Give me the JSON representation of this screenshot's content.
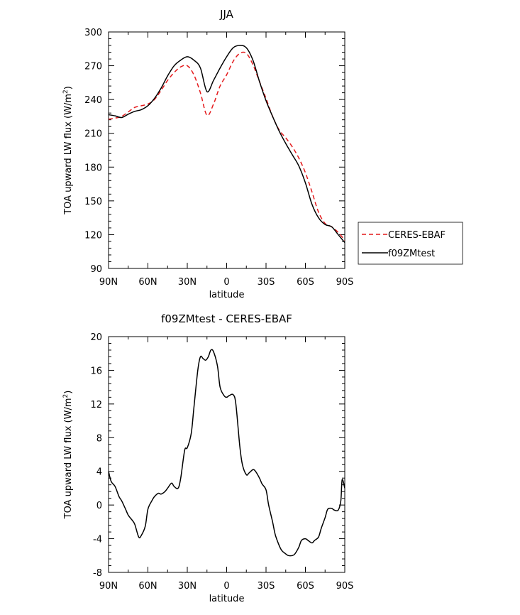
{
  "chart_data": [
    {
      "type": "line",
      "title": "JJA",
      "xlabel": "latitude",
      "ylabel": "TOA upward LW flux (W/m",
      "ylabel_sup": "2",
      "ylabel_end": ")",
      "xlim": [
        90,
        -90
      ],
      "ylim": [
        90,
        300
      ],
      "xticks": [
        90,
        60,
        30,
        0,
        -30,
        -60,
        -90
      ],
      "xticklabels": [
        "90N",
        "60N",
        "30N",
        "0",
        "30S",
        "60S",
        "90S"
      ],
      "yticks": [
        90,
        120,
        150,
        180,
        210,
        240,
        270,
        300
      ],
      "yticklabels": [
        "90",
        "120",
        "150",
        "180",
        "210",
        "240",
        "270",
        "300"
      ],
      "legend": "right",
      "series": [
        {
          "name": "CERES-EBAF",
          "color": "#e41a1c",
          "dash": "dashed",
          "x": [
            90,
            85,
            80,
            75,
            70,
            65,
            60,
            55,
            50,
            45,
            40,
            35,
            30,
            25,
            20,
            15,
            10,
            5,
            0,
            -5,
            -10,
            -15,
            -20,
            -25,
            -30,
            -35,
            -40,
            -45,
            -50,
            -55,
            -60,
            -65,
            -70,
            -75,
            -80,
            -85,
            -90
          ],
          "values": [
            222.5,
            223.5,
            225,
            229,
            233,
            234.5,
            236,
            240,
            248,
            257,
            264,
            269,
            270,
            262,
            246,
            226,
            236,
            252,
            262,
            274,
            281,
            281,
            271,
            256,
            241,
            225,
            213,
            206,
            198,
            188,
            175,
            158,
            140,
            130,
            127,
            122,
            115
          ]
        },
        {
          "name": "f09ZMtest",
          "color": "#000000",
          "dash": "solid",
          "x": [
            90,
            85,
            80,
            75,
            70,
            65,
            60,
            55,
            50,
            45,
            40,
            35,
            30,
            25,
            20,
            15,
            10,
            5,
            0,
            -5,
            -10,
            -15,
            -20,
            -25,
            -30,
            -35,
            -40,
            -45,
            -50,
            -55,
            -60,
            -65,
            -70,
            -75,
            -80,
            -85,
            -90
          ],
          "values": [
            226.5,
            225.5,
            224,
            227,
            229.5,
            231,
            234.5,
            241,
            250,
            261,
            270,
            275,
            278,
            275,
            268,
            247,
            257,
            268,
            278,
            286,
            288,
            286,
            275,
            256,
            239,
            225,
            212,
            201,
            191,
            181,
            166,
            147,
            135,
            129,
            127,
            120,
            113
          ]
        }
      ]
    },
    {
      "type": "line",
      "title": "f09ZMtest - CERES-EBAF",
      "xlabel": "latitude",
      "ylabel": "TOA upward LW flux (W/m",
      "ylabel_sup": "2",
      "ylabel_end": ")",
      "xlim": [
        90,
        -90
      ],
      "ylim": [
        -8,
        20
      ],
      "xticks": [
        90,
        60,
        30,
        0,
        -30,
        -60,
        -90
      ],
      "xticklabels": [
        "90N",
        "60N",
        "30N",
        "0",
        "30S",
        "60S",
        "90S"
      ],
      "yticks": [
        -8,
        -4,
        0,
        4,
        8,
        12,
        16,
        20
      ],
      "yticklabels": [
        "-8",
        "-4",
        "0",
        "4",
        "8",
        "12",
        "16",
        "20"
      ],
      "series": [
        {
          "color": "#000000",
          "dash": "solid",
          "x": [
            90,
            88,
            85,
            82,
            80,
            77,
            75,
            72,
            70,
            67,
            65,
            62,
            60,
            57,
            55,
            52,
            50,
            47,
            45,
            42,
            40,
            37,
            35,
            32,
            30,
            27,
            25,
            22,
            20,
            18,
            16,
            14,
            12,
            10,
            7,
            5,
            2,
            0,
            -2,
            -5,
            -7,
            -10,
            -12,
            -15,
            -17,
            -20,
            -22,
            -25,
            -27,
            -30,
            -32,
            -35,
            -37,
            -40,
            -42,
            -45,
            -47,
            -50,
            -52,
            -55,
            -57,
            -60,
            -62,
            -65,
            -67,
            -70,
            -72,
            -75,
            -77,
            -80,
            -82,
            -85,
            -87,
            -88,
            -90
          ],
          "values": [
            4.0,
            2.8,
            2.2,
            1.0,
            0.5,
            -0.5,
            -1.2,
            -1.8,
            -2.3,
            -3.8,
            -3.6,
            -2.5,
            -0.5,
            0.5,
            1.0,
            1.4,
            1.3,
            1.6,
            2.0,
            2.6,
            2.2,
            2.0,
            3.2,
            6.5,
            6.8,
            8.5,
            11.5,
            16.0,
            17.6,
            17.4,
            17.2,
            17.6,
            18.4,
            18.2,
            16.5,
            14.0,
            13.0,
            12.8,
            13.0,
            13.1,
            12.0,
            7.0,
            4.8,
            3.6,
            3.8,
            4.2,
            4.0,
            3.2,
            2.5,
            1.8,
            0.0,
            -2.0,
            -3.5,
            -4.8,
            -5.4,
            -5.8,
            -6.0,
            -6.0,
            -5.8,
            -5.0,
            -4.2,
            -4.0,
            -4.2,
            -4.5,
            -4.2,
            -3.8,
            -2.8,
            -1.5,
            -0.5,
            -0.4,
            -0.6,
            -0.6,
            0.5,
            3.0,
            2.0
          ]
        }
      ]
    }
  ]
}
